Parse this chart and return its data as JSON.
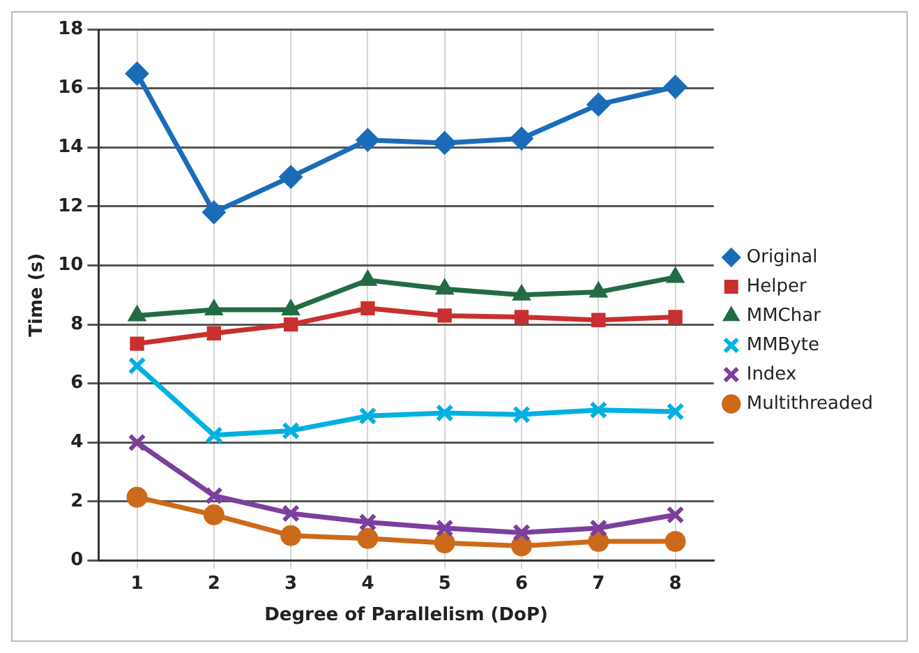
{
  "chart_data": {
    "type": "line",
    "xlabel": "Degree of Parallelism (DoP)",
    "ylabel": "Time (s)",
    "categories": [
      "1",
      "2",
      "3",
      "4",
      "5",
      "6",
      "7",
      "8"
    ],
    "ylim": [
      0,
      18
    ],
    "yticks": [
      0,
      2,
      4,
      6,
      8,
      10,
      12,
      14,
      16,
      18
    ],
    "grid": true,
    "legend": "right",
    "series": [
      {
        "name": "Original",
        "color": "#1b6cb8",
        "marker": "diamond",
        "values": [
          16.5,
          11.8,
          13.0,
          14.25,
          14.15,
          14.3,
          15.45,
          16.05
        ]
      },
      {
        "name": "Helper",
        "color": "#c8302f",
        "marker": "square",
        "values": [
          7.35,
          7.7,
          8.0,
          8.55,
          8.3,
          8.25,
          8.15,
          8.25
        ]
      },
      {
        "name": "MMChar",
        "color": "#236b45",
        "marker": "triangle",
        "values": [
          8.3,
          8.5,
          8.5,
          9.5,
          9.2,
          9.0,
          9.1,
          9.6
        ]
      },
      {
        "name": "MMByte",
        "color": "#00b0e0",
        "marker": "cross",
        "values": [
          6.6,
          4.25,
          4.4,
          4.9,
          5.0,
          4.95,
          5.1,
          5.05
        ]
      },
      {
        "name": "Index",
        "color": "#7b3f9c",
        "marker": "cross",
        "values": [
          4.0,
          2.2,
          1.6,
          1.3,
          1.1,
          0.95,
          1.1,
          1.55
        ]
      },
      {
        "name": "Multithreaded",
        "color": "#cc6a1a",
        "marker": "circle",
        "values": [
          2.15,
          1.55,
          0.85,
          0.75,
          0.6,
          0.5,
          0.65,
          0.65
        ]
      }
    ]
  }
}
